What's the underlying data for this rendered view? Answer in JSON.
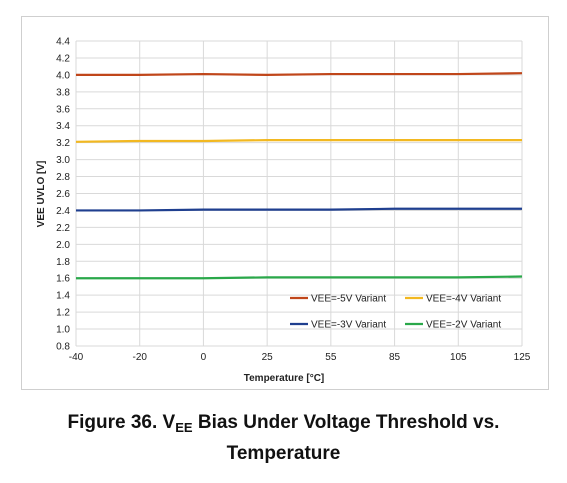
{
  "chart_data": {
    "type": "line",
    "title": "",
    "xlabel": "Temperature [°C]",
    "ylabel": "VEE UVLO [V]",
    "x": [
      -40,
      -20,
      0,
      25,
      55,
      85,
      105,
      125
    ],
    "x_tick_labels": [
      "-40",
      "-20",
      "0",
      "25",
      "55",
      "85",
      "105",
      "125"
    ],
    "ylim": [
      0.8,
      4.4
    ],
    "y_ticks": [
      "0.8",
      "1.0",
      "1.2",
      "1.4",
      "1.6",
      "1.8",
      "2.0",
      "2.2",
      "2.4",
      "2.6",
      "2.8",
      "3.0",
      "3.2",
      "3.4",
      "3.6",
      "3.8",
      "4.0",
      "4.2",
      "4.4"
    ],
    "grid": true,
    "legend_position": "bottom-right",
    "series": [
      {
        "name": "VEE=-5V Variant",
        "color": "#c0461a",
        "values": [
          4.0,
          4.0,
          4.01,
          4.0,
          4.01,
          4.01,
          4.01,
          4.02
        ]
      },
      {
        "name": "VEE=-4V Variant",
        "color": "#f2b820",
        "values": [
          3.21,
          3.22,
          3.22,
          3.23,
          3.23,
          3.23,
          3.23,
          3.23
        ]
      },
      {
        "name": "VEE=-3V Variant",
        "color": "#1f3f8f",
        "values": [
          2.4,
          2.4,
          2.41,
          2.41,
          2.41,
          2.42,
          2.42,
          2.42
        ]
      },
      {
        "name": "VEE=-2V Variant",
        "color": "#2aa84a",
        "values": [
          1.6,
          1.6,
          1.6,
          1.61,
          1.61,
          1.61,
          1.61,
          1.62
        ]
      }
    ]
  },
  "caption": {
    "prefix": "Figure 36. V",
    "subscript": "EE",
    "rest": " Bias Under Voltage Threshold vs.",
    "line2": "Temperature"
  }
}
